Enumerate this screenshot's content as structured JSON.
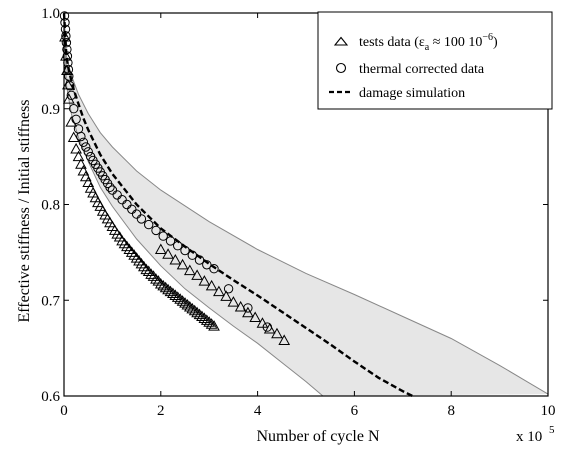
{
  "chart_data": {
    "type": "scatter",
    "xlabel": "Number of cycle N",
    "ylabel": "Effective stiffness / Initial stiffness",
    "x_multiplier_label": "x 10",
    "x_multiplier_exponent": "5",
    "xlim": [
      0,
      10
    ],
    "ylim": [
      0.6,
      1.0
    ],
    "x_ticks": [
      0,
      2,
      4,
      6,
      8,
      10
    ],
    "x_tick_labels": [
      "0",
      "2",
      "4",
      "6",
      "8",
      "10"
    ],
    "y_ticks": [
      0.6,
      0.7,
      0.8,
      0.9,
      1.0
    ],
    "y_tick_labels": [
      "0.6",
      "0.7",
      "0.8",
      "0.9",
      "1.0"
    ],
    "grid": false,
    "legend_position": "top-right",
    "legend": {
      "tests_main": "tests data (ε",
      "tests_sub": "a",
      "tests_approx": " ≈ 100 10",
      "tests_sup": "−6",
      "tests_close": ")",
      "thermal": "thermal corrected data",
      "damage": "damage simulation"
    },
    "band": {
      "upper": [
        [
          0,
          1.0
        ],
        [
          0.05,
          0.955
        ],
        [
          0.15,
          0.935
        ],
        [
          0.3,
          0.915
        ],
        [
          0.5,
          0.895
        ],
        [
          0.75,
          0.875
        ],
        [
          1.0,
          0.86
        ],
        [
          1.5,
          0.835
        ],
        [
          2.0,
          0.815
        ],
        [
          3.0,
          0.782
        ],
        [
          4.0,
          0.753
        ],
        [
          5.0,
          0.728
        ],
        [
          6.0,
          0.706
        ],
        [
          7.0,
          0.683
        ],
        [
          8.0,
          0.66
        ],
        [
          9.0,
          0.632
        ],
        [
          10.0,
          0.602
        ]
      ],
      "lower": [
        [
          0,
          1.0
        ],
        [
          0.05,
          0.925
        ],
        [
          0.15,
          0.895
        ],
        [
          0.3,
          0.87
        ],
        [
          0.5,
          0.845
        ],
        [
          0.75,
          0.818
        ],
        [
          1.0,
          0.798
        ],
        [
          1.5,
          0.764
        ],
        [
          2.0,
          0.736
        ],
        [
          2.5,
          0.712
        ],
        [
          3.0,
          0.692
        ],
        [
          3.5,
          0.673
        ],
        [
          4.0,
          0.655
        ],
        [
          4.5,
          0.635
        ],
        [
          5.0,
          0.615
        ],
        [
          5.35,
          0.6
        ]
      ]
    },
    "series": [
      {
        "name": "tests data",
        "marker": "triangle",
        "x": [
          0.02,
          0.04,
          0.06,
          0.08,
          0.1,
          0.15,
          0.2,
          0.25,
          0.3,
          0.35,
          0.4,
          0.45,
          0.5,
          0.55,
          0.6,
          0.65,
          0.7,
          0.75,
          0.8,
          0.85,
          0.9,
          0.95,
          1.0,
          1.05,
          1.1,
          1.15,
          1.2,
          1.25,
          1.3,
          1.35,
          1.4,
          1.45,
          1.5,
          1.55,
          1.6,
          1.65,
          1.7,
          1.75,
          1.8,
          1.85,
          1.9,
          1.95,
          2.0,
          2.05,
          2.1,
          2.15,
          2.2,
          2.25,
          2.3,
          2.35,
          2.4,
          2.45,
          2.5,
          2.55,
          2.6,
          2.65,
          2.7,
          2.75,
          2.8,
          2.85,
          2.9,
          2.95,
          3.0,
          3.05,
          3.1,
          2.0,
          2.15,
          2.3,
          2.45,
          2.6,
          2.75,
          2.9,
          3.05,
          3.2,
          3.35,
          3.5,
          3.65,
          3.8,
          3.95,
          4.1,
          4.25,
          4.4,
          4.55
        ],
        "y": [
          0.975,
          0.955,
          0.94,
          0.925,
          0.91,
          0.886,
          0.87,
          0.858,
          0.85,
          0.842,
          0.835,
          0.829,
          0.823,
          0.817,
          0.812,
          0.807,
          0.802,
          0.798,
          0.793,
          0.789,
          0.785,
          0.781,
          0.777,
          0.773,
          0.769,
          0.766,
          0.762,
          0.759,
          0.756,
          0.753,
          0.75,
          0.747,
          0.744,
          0.741,
          0.738,
          0.735,
          0.732,
          0.73,
          0.727,
          0.725,
          0.722,
          0.72,
          0.717,
          0.715,
          0.713,
          0.711,
          0.709,
          0.707,
          0.705,
          0.703,
          0.701,
          0.699,
          0.697,
          0.695,
          0.693,
          0.691,
          0.689,
          0.687,
          0.685,
          0.683,
          0.681,
          0.679,
          0.677,
          0.675,
          0.673,
          0.753,
          0.748,
          0.742,
          0.737,
          0.731,
          0.726,
          0.72,
          0.715,
          0.709,
          0.704,
          0.698,
          0.693,
          0.687,
          0.682,
          0.676,
          0.67,
          0.665,
          0.658
        ]
      },
      {
        "name": "thermal corrected data",
        "marker": "circle",
        "x": [
          0.01,
          0.02,
          0.03,
          0.04,
          0.05,
          0.06,
          0.07,
          0.08,
          0.09,
          0.1,
          0.12,
          0.15,
          0.2,
          0.25,
          0.3,
          0.35,
          0.4,
          0.45,
          0.5,
          0.55,
          0.6,
          0.65,
          0.7,
          0.75,
          0.8,
          0.85,
          0.9,
          0.95,
          1.0,
          1.1,
          1.2,
          1.3,
          1.4,
          1.5,
          1.6,
          1.75,
          1.9,
          2.05,
          2.2,
          2.35,
          2.5,
          2.65,
          2.8,
          2.95,
          3.1,
          3.4,
          3.8,
          4.2
        ],
        "y": [
          0.997,
          0.99,
          0.983,
          0.976,
          0.969,
          0.962,
          0.955,
          0.948,
          0.941,
          0.934,
          0.924,
          0.914,
          0.9,
          0.889,
          0.879,
          0.871,
          0.865,
          0.86,
          0.855,
          0.85,
          0.846,
          0.842,
          0.838,
          0.834,
          0.83,
          0.826,
          0.822,
          0.818,
          0.815,
          0.81,
          0.805,
          0.8,
          0.795,
          0.79,
          0.785,
          0.779,
          0.773,
          0.767,
          0.762,
          0.757,
          0.752,
          0.747,
          0.742,
          0.737,
          0.733,
          0.712,
          0.692,
          0.672
        ]
      },
      {
        "name": "damage simulation",
        "marker": "dashed-line",
        "x": [
          0,
          0.05,
          0.1,
          0.2,
          0.3,
          0.4,
          0.5,
          0.75,
          1.0,
          1.5,
          2.0,
          2.5,
          3.0,
          3.5,
          4.0,
          4.5,
          5.0,
          5.5,
          6.0,
          6.5,
          7.0,
          7.2
        ],
        "y": [
          1.0,
          0.955,
          0.94,
          0.92,
          0.905,
          0.89,
          0.878,
          0.852,
          0.832,
          0.8,
          0.775,
          0.756,
          0.738,
          0.721,
          0.705,
          0.688,
          0.671,
          0.654,
          0.636,
          0.619,
          0.605,
          0.6
        ]
      }
    ]
  }
}
